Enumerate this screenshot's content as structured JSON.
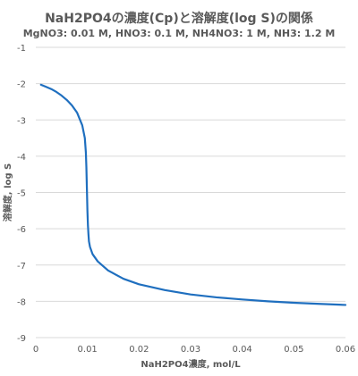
{
  "chart_data": {
    "type": "line",
    "title": "NaH2PO4の濃度(Cp)と溶解度(log S)の関係",
    "subtitle": "MgNO3: 0.01 M, HNO3: 0.1 M, NH4NO3: 1 M, NH3: 1.2 M",
    "xlabel": "NaH2PO4濃度, mol/L",
    "ylabel": "溶解度, log S",
    "xlim": [
      0,
      0.06
    ],
    "ylim": [
      -9,
      -1
    ],
    "x_ticks": [
      "0",
      "0.01",
      "0.02",
      "0.03",
      "0.04",
      "0.05",
      "0.06"
    ],
    "y_ticks": [
      "-1",
      "-2",
      "-3",
      "-4",
      "-5",
      "-6",
      "-7",
      "-8",
      "-9"
    ],
    "grid": "horizontal",
    "legend": "none",
    "line_color": "#1f6fbf",
    "series": [
      {
        "x": [
          0.001,
          0.002,
          0.003,
          0.004,
          0.005,
          0.006,
          0.007,
          0.008,
          0.009,
          0.0095,
          0.0097,
          0.0098,
          0.0099,
          0.01,
          0.0101,
          0.0102,
          0.0103,
          0.0105,
          0.011,
          0.012,
          0.014,
          0.017,
          0.02,
          0.025,
          0.03,
          0.035,
          0.04,
          0.045,
          0.05,
          0.055,
          0.06
        ],
        "y": [
          -2.03,
          -2.09,
          -2.15,
          -2.23,
          -2.33,
          -2.45,
          -2.6,
          -2.8,
          -3.15,
          -3.5,
          -3.9,
          -4.3,
          -4.9,
          -5.5,
          -5.9,
          -6.15,
          -6.35,
          -6.5,
          -6.7,
          -6.9,
          -7.15,
          -7.38,
          -7.53,
          -7.69,
          -7.81,
          -7.89,
          -7.95,
          -8.0,
          -8.04,
          -8.07,
          -8.1
        ]
      }
    ]
  }
}
